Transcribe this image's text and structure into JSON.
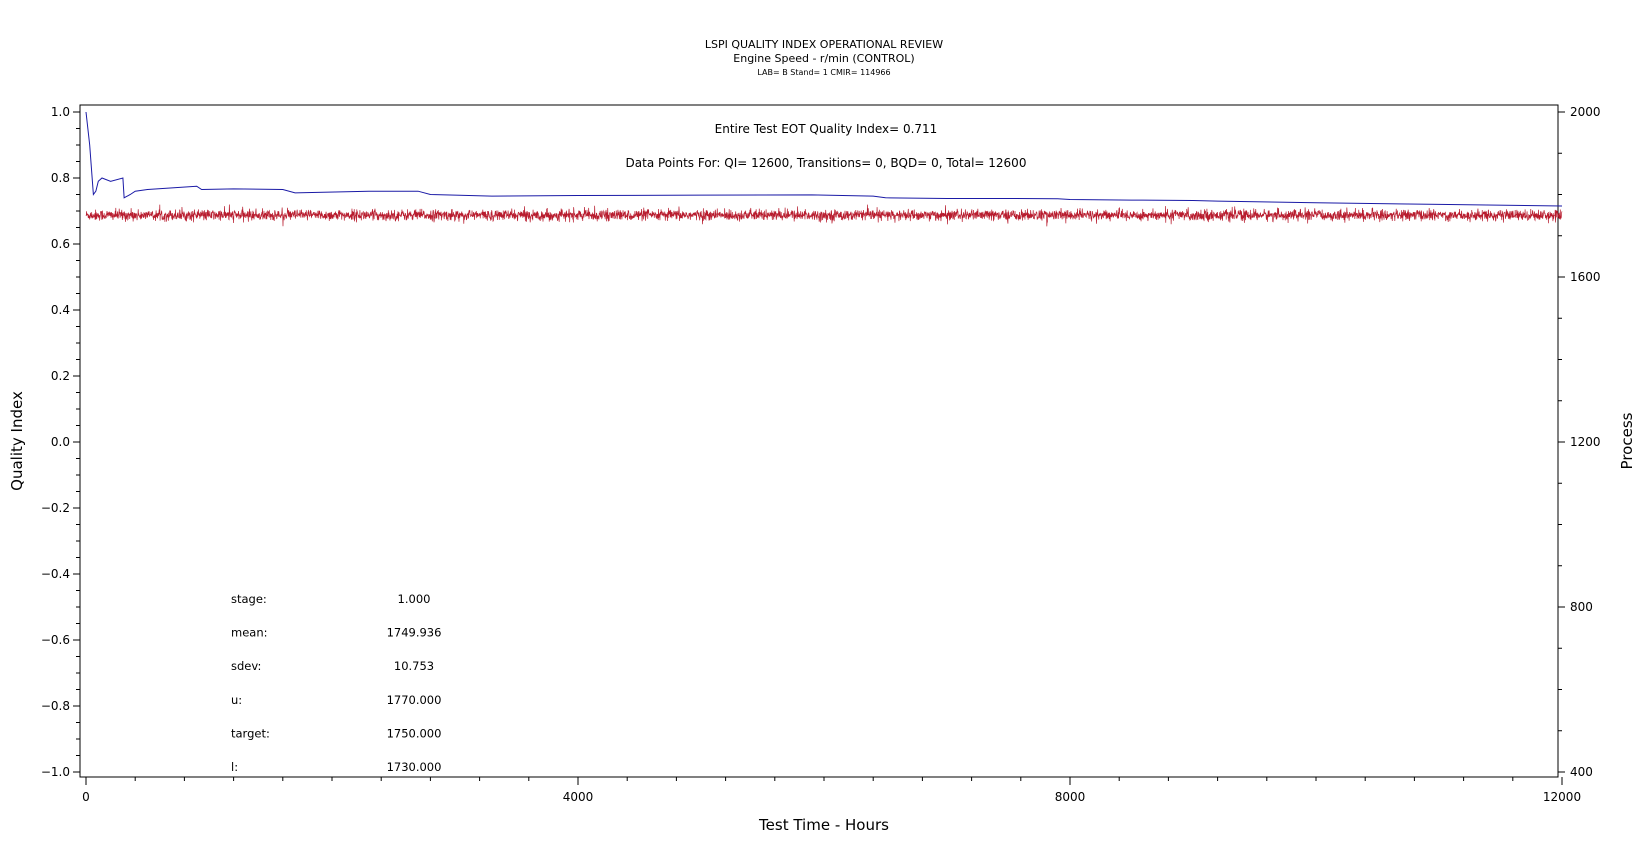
{
  "chart_data": {
    "type": "line",
    "title": "LSPI QUALITY INDEX OPERATIONAL REVIEW",
    "subtitle": "Engine Speed - r/min (CONTROL)",
    "subtitle2": "LAB= B Stand= 1 CMIR= 114966",
    "xlabel": "Test Time - Hours",
    "ylabel_left": "Quality Index",
    "ylabel_right": "Process",
    "xlim": [
      0,
      12000
    ],
    "ylim_left": [
      -1.0,
      1.0
    ],
    "ylim_right": [
      400,
      2000
    ],
    "x_ticks": [
      "0",
      "4000",
      "8000",
      "12000"
    ],
    "y_left_ticks": [
      "1.0",
      "0.8",
      "0.6",
      "0.4",
      "0.2",
      "0.0",
      "-0.2",
      "-0.4",
      "-0.6",
      "-0.8",
      "-1.0"
    ],
    "y_right_ticks": [
      "2000",
      "1600",
      "1200",
      "800",
      "400"
    ],
    "annotations": {
      "eot": "Entire Test EOT Quality Index=   0.711",
      "points": "Data Points For: QI= 12600, Transitions=      0, BQD=      0, Total= 12600"
    },
    "stats": [
      {
        "label": "stage:",
        "value": "1.000"
      },
      {
        "label": "mean:",
        "value": "1749.936"
      },
      {
        "label": "sdev:",
        "value": "10.753"
      },
      {
        "label": "u:",
        "value": "1770.000"
      },
      {
        "label": "target:",
        "value": "1750.000"
      },
      {
        "label": "l:",
        "value": "1730.000"
      }
    ],
    "series": [
      {
        "axis": "left",
        "color": "#1a1aa6",
        "x": [
          0,
          30,
          60,
          80,
          100,
          130,
          200,
          300,
          310,
          360,
          400,
          500,
          700,
          900,
          940,
          1200,
          1600,
          1700,
          2300,
          2700,
          2800,
          3000,
          3300,
          4000,
          5000,
          5900,
          6400,
          6500,
          7000,
          7500,
          7900,
          8000,
          8500,
          9000,
          9200,
          10000,
          11000,
          12000
        ],
        "y": [
          1.0,
          0.9,
          0.75,
          0.76,
          0.79,
          0.8,
          0.79,
          0.8,
          0.74,
          0.75,
          0.76,
          0.765,
          0.77,
          0.775,
          0.765,
          0.767,
          0.765,
          0.755,
          0.76,
          0.76,
          0.75,
          0.748,
          0.745,
          0.747,
          0.748,
          0.749,
          0.745,
          0.74,
          0.738,
          0.738,
          0.737,
          0.735,
          0.733,
          0.732,
          0.73,
          0.725,
          0.72,
          0.715
        ]
      },
      {
        "axis": "right",
        "color": "#b81c2e",
        "mean": 1749.936,
        "sdev": 10.753,
        "x_start": 0,
        "x_end": 12000
      }
    ]
  }
}
